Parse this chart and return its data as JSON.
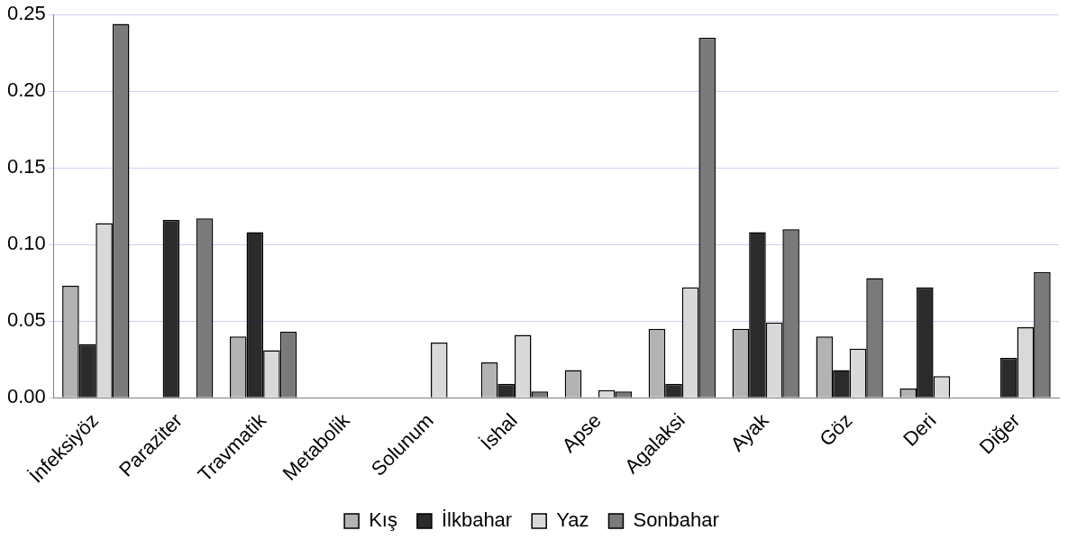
{
  "chart_data": {
    "type": "bar",
    "categories": [
      "İnfeksiyöz",
      "Paraziter",
      "Travmatik",
      "Metabolik",
      "Solunum",
      "İshal",
      "Apse",
      "Agalaksi",
      "Ayak",
      "Göz",
      "Deri",
      "Diğer"
    ],
    "series": [
      {
        "name": "Kış",
        "color": "#b3b3b3",
        "values": [
          0.073,
          0,
          0.04,
          0,
          0,
          0.023,
          0.018,
          0.045,
          0.045,
          0.04,
          0.006,
          0
        ]
      },
      {
        "name": "İlkbahar",
        "color": "#2b2b2b",
        "values": [
          0.035,
          0.116,
          0.108,
          0,
          0,
          0.009,
          0,
          0.009,
          0.108,
          0.018,
          0.072,
          0.026
        ]
      },
      {
        "name": "Yaz",
        "color": "#d9d9d9",
        "values": [
          0.114,
          0,
          0.031,
          0,
          0.036,
          0.041,
          0.005,
          0.072,
          0.049,
          0.032,
          0.014,
          0.046
        ]
      },
      {
        "name": "Sonbahar",
        "color": "#7a7a7a",
        "values": [
          0.244,
          0.117,
          0.043,
          0,
          0,
          0.004,
          0.004,
          0.235,
          0.11,
          0.078,
          0,
          0.082
        ]
      }
    ],
    "ylim": [
      0,
      0.25
    ],
    "yticks": [
      {
        "value": 0,
        "label": "0.00"
      },
      {
        "value": 0.05,
        "label": "0.05"
      },
      {
        "value": 0.1,
        "label": "0.10"
      },
      {
        "value": 0.15,
        "label": "0.15"
      },
      {
        "value": 0.2,
        "label": "0.20"
      },
      {
        "value": 0.25,
        "label": "0.25"
      }
    ],
    "grid": "y",
    "legend": "bottom"
  }
}
